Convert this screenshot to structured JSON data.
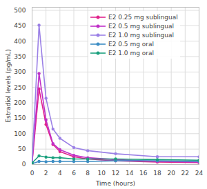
{
  "chart_data": {
    "type": "line",
    "x_label": "Time (hours)",
    "y_label": "Estradiol levels (pg/mL)",
    "x": [
      0,
      1,
      2,
      3,
      4,
      6,
      8,
      12,
      18,
      24
    ],
    "series": [
      {
        "name": "E2 0.25 mg sublingual",
        "color": "#e0248c",
        "values": [
          5,
          245,
          130,
          65,
          42,
          25,
          18,
          12,
          8,
          6
        ]
      },
      {
        "name": "E2 0.5 mg sublingual",
        "color": "#c02fc8",
        "values": [
          5,
          295,
          145,
          68,
          48,
          30,
          22,
          16,
          10,
          8
        ]
      },
      {
        "name": "E2 1.0 mg sublingual",
        "color": "#9b80e6",
        "values": [
          8,
          452,
          215,
          115,
          85,
          55,
          45,
          35,
          25,
          25
        ]
      },
      {
        "name": "E2 0.5 mg oral",
        "color": "#3c8dc4",
        "values": [
          3,
          10,
          9,
          10,
          10,
          10,
          10,
          12,
          12,
          10
        ]
      },
      {
        "name": "E2 1.0 mg oral",
        "color": "#1ba07e",
        "values": [
          5,
          28,
          24,
          22,
          22,
          18,
          18,
          18,
          16,
          14
        ]
      }
    ],
    "xlim": [
      0,
      24
    ],
    "xticks": [
      0,
      2,
      4,
      6,
      8,
      10,
      12,
      14,
      16,
      18,
      20,
      22,
      24
    ],
    "ylim": [
      0,
      510
    ],
    "yticks": [
      0,
      50,
      100,
      150,
      200,
      250,
      300,
      350,
      400,
      450,
      500
    ],
    "grid": true,
    "legend": "top-right",
    "marker": "circle",
    "line_style": "solid"
  }
}
